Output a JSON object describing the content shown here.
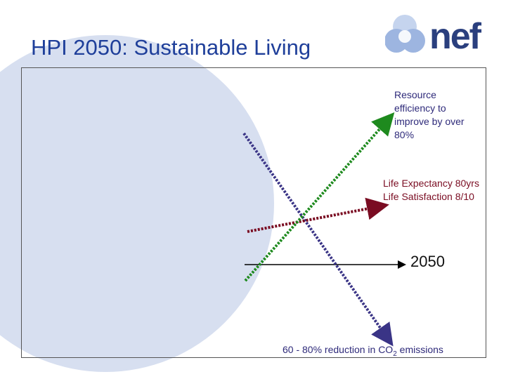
{
  "slide": {
    "title": "HPI 2050: Sustainable Living",
    "logo": "nef"
  },
  "labels": {
    "resource": "Resource efficiency to improve by over 80%",
    "life_expectancy": "Life Expectancy 80yrs",
    "life_satisfaction": "Life Satisfaction 8/10",
    "year": "2050",
    "co2_prefix": "60 - 80% reduction in CO",
    "co2_subscript": "2",
    "co2_suffix": " emissions"
  },
  "colors": {
    "title": "#1f3f9a",
    "resource_arrow": "#1e8a1e",
    "life_arrow": "#7a0c22",
    "co2_arrow": "#3a3486",
    "timeline": "#000000",
    "circle": "#d7dff0"
  }
}
